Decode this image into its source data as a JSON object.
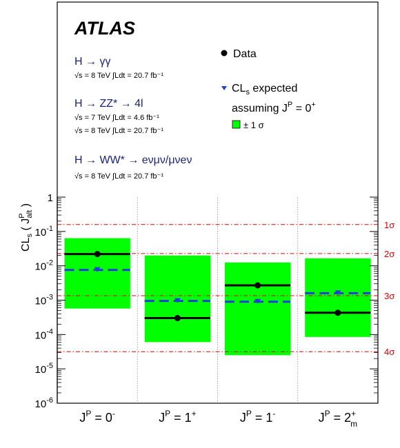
{
  "chart_data": {
    "type": "bar",
    "experiment": "ATLAS",
    "ylabel": {
      "main": "CL",
      "sub": "s",
      "open": " ( J",
      "sup": "P",
      "alt": "alt",
      "close": " )"
    },
    "yscale": "log",
    "ylim": [
      1e-06,
      1
    ],
    "y_tick_labels": [
      {
        "value": 1,
        "base": "1",
        "exp": ""
      },
      {
        "value": 0.1,
        "base": "10",
        "exp": "-1"
      },
      {
        "value": 0.01,
        "base": "10",
        "exp": "-2"
      },
      {
        "value": 0.001,
        "base": "10",
        "exp": "-3"
      },
      {
        "value": 0.0001,
        "base": "10",
        "exp": "-4"
      },
      {
        "value": 1e-05,
        "base": "10",
        "exp": "-5"
      },
      {
        "value": 1e-06,
        "base": "10",
        "exp": "-6"
      }
    ],
    "categories": [
      {
        "base": "J",
        "sup": "P",
        "eq": " = 0",
        "q": "-",
        "sub": ""
      },
      {
        "base": "J",
        "sup": "P",
        "eq": " = 1",
        "q": "+",
        "sub": ""
      },
      {
        "base": "J",
        "sup": "P",
        "eq": " = 1",
        "q": "-",
        "sub": ""
      },
      {
        "base": "J",
        "sup": "P",
        "eq": " = 2",
        "q": "+",
        "sub": "m"
      }
    ],
    "observed": [
      0.022,
      0.0003,
      0.0027,
      0.00043
    ],
    "expected": [
      0.0076,
      0.00095,
      0.0009,
      0.0016
    ],
    "band_low": [
      0.00057,
      6e-05,
      2.5e-05,
      8.5e-05
    ],
    "band_high": [
      0.064,
      0.02,
      0.0125,
      0.0165
    ],
    "sigma_lines": [
      {
        "label": "1σ",
        "value": 0.159
      },
      {
        "label": "2σ",
        "value": 0.0228
      },
      {
        "label": "3σ",
        "value": 0.00135
      },
      {
        "label": "4σ",
        "value": 3.17e-05
      }
    ],
    "colors": {
      "observed": "#000000",
      "expected": "#1f3fd8",
      "band": "#00ff00",
      "sigma": "#dd0000",
      "channel": "#1a237e"
    },
    "channels": [
      {
        "decay": "H → γγ",
        "conditions": [
          "√s = 8 TeV ∫Ldt = 20.7 fb⁻¹"
        ]
      },
      {
        "decay": "H → ZZ* → 4l",
        "conditions": [
          "√s = 7 TeV ∫Ldt = 4.6 fb⁻¹",
          "√s = 8 TeV ∫Ldt = 20.7 fb⁻¹"
        ]
      },
      {
        "decay": "H → WW* → eνμν/μνeν",
        "conditions": [
          "√s = 8 TeV ∫Ldt = 20.7 fb⁻¹"
        ]
      }
    ],
    "legend": {
      "data": "Data",
      "expected_line1": "CL",
      "expected_sub": "s",
      "expected_rest": " expected",
      "expected_line2": "assuming J",
      "expected_sup": "P",
      "expected_eq": " = 0",
      "expected_q": "+",
      "band": "± 1 σ",
      "placement": "top-right"
    }
  }
}
